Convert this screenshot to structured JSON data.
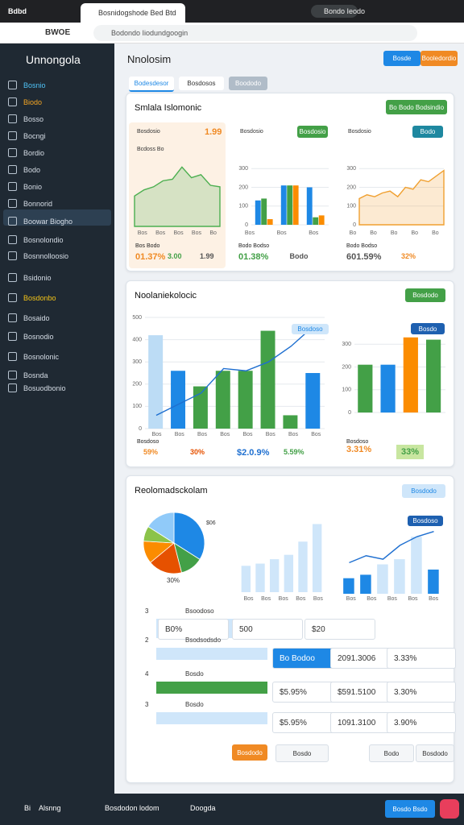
{
  "browser": {
    "tabs": [
      "Bdbd",
      "Bosnidogshode Bed Btd"
    ],
    "profile": "Bondo Ieodo",
    "nav_label": "BWOE",
    "url": "Bodondo Iiodundgoogin"
  },
  "sidebar": {
    "title": "Unnongola",
    "items": [
      "Bosnio",
      "Biodo",
      "Bosso",
      "Bocngi",
      "Bordio",
      "Bodo",
      "Bonio",
      "Bonnorid",
      "Boowar Biogho",
      "Bosnolondio",
      "Bosnnolloosio",
      "Bsidonio",
      "Bosdonbo",
      "Bosaido",
      "Bosnodio",
      "Bosnolonic",
      "Bosnda",
      "Bosuodbonio"
    ],
    "footer": "Alsnng"
  },
  "header": {
    "title": "Nnolosim",
    "buttons": [
      "Bosde",
      "Booledordio"
    ]
  },
  "tabs": [
    "Bodesdesor",
    "Bosdosos",
    "Boododo"
  ],
  "card1": {
    "title": "Smlala Islomonic",
    "button": "Bo Bodo Bodsindio",
    "panels": [
      {
        "label": "Bosdosio",
        "value": "1.99",
        "caption": "Bcdoss Bo",
        "axis_labels": [
          "Bos",
          "Bos",
          "Bos",
          "Bos",
          "Bo"
        ],
        "chart": {
          "type": "area",
          "series": [
            {
              "color": "#4caf50",
              "values": [
                2.0,
                2.4,
                2.6,
                3.0,
                3.1,
                3.9,
                3.2,
                3.4,
                2.7,
                2.6
              ]
            }
          ]
        },
        "footer": "Bos Bodo",
        "stats": [
          "01.37%",
          "3.00",
          "1.99"
        ]
      },
      {
        "label": "Bosdosio",
        "button": "Bosdosio",
        "axis_labels": [
          "Bos",
          "Bos",
          "Bos"
        ],
        "chart": {
          "type": "bar",
          "ylim": [
            0,
            400
          ],
          "yticks": [
            0,
            100,
            200,
            300
          ],
          "series": [
            {
              "color": "#1e88e5",
              "values": [
                130,
                210,
                200
              ]
            },
            {
              "color": "#43a047",
              "values": [
                140,
                210,
                40
              ]
            },
            {
              "color": "#fb8c00",
              "values": [
                30,
                210,
                50
              ]
            }
          ]
        },
        "footer": "Bodo Bodso",
        "stats": [
          "01.38%",
          "Bodo"
        ]
      },
      {
        "label": "Bosdosio",
        "button": "Bodo",
        "axis_labels": [
          "Bo",
          "Bo",
          "Bo",
          "Bo",
          "Bo"
        ],
        "chart": {
          "type": "area",
          "ylim": [
            0,
            400
          ],
          "yticks": [
            0,
            100,
            200,
            300
          ],
          "series": [
            {
              "color": "#f0a030",
              "values": [
                140,
                160,
                150,
                170,
                180,
                150,
                200,
                190,
                240,
                230,
                260,
                290
              ]
            }
          ]
        },
        "footer": "Bodo Bodso",
        "stats": [
          "601.59%",
          "32%"
        ]
      }
    ]
  },
  "card2": {
    "title": "Noolaniekolocic",
    "button": "Bosdodo",
    "badge": "Bosdoso",
    "legend": "Bosdo",
    "axis_labels": [
      "Bos",
      "Bos",
      "Bos",
      "Bos",
      "Bos",
      "Bos",
      "Bos",
      "Bos"
    ],
    "left": {
      "type": "bar",
      "ylim": [
        0,
        500
      ],
      "yticks": [
        0,
        100,
        200,
        300,
        400,
        500
      ],
      "series": [
        {
          "colors": [
            "#bcdcf5",
            "#1e88e5",
            "#43a047",
            "#43a047",
            "#43a047",
            "#43a047",
            "#43a047",
            "#1e88e5"
          ],
          "values": [
            420,
            260,
            190,
            260,
            260,
            440,
            60,
            250
          ]
        },
        {
          "kind": "line",
          "color": "#1e6fd0",
          "values": [
            60,
            110,
            160,
            270,
            260,
            300,
            370,
            460
          ]
        }
      ]
    },
    "right": {
      "type": "bar",
      "ylim": [
        0,
        400
      ],
      "yticks": [
        0,
        100,
        200,
        300
      ],
      "series": [
        {
          "colors": [
            "#43a047",
            "#1e88e5",
            "#fb8c00",
            "#43a047"
          ],
          "values": [
            210,
            210,
            330,
            320
          ]
        }
      ]
    },
    "footer": "Bosdoso",
    "stats": [
      "59%",
      "30%",
      "$2.0.9%",
      "5.59%"
    ],
    "right_footer": "Bosdoso",
    "right_stats": [
      "3.31%",
      "33%"
    ]
  },
  "card3": {
    "title": "Reolomadsckolam",
    "button": "Bosdodo",
    "pie_labels": [
      "$06",
      "30%"
    ],
    "pie": {
      "type": "pie",
      "series": [
        {
          "colors": [
            "#1e88e5",
            "#43a047",
            "#e65100",
            "#fb8c00",
            "#8bc34a",
            "#90caf9"
          ],
          "values": [
            34,
            12,
            18,
            12,
            8,
            16
          ]
        }
      ]
    },
    "mid": {
      "type": "bar",
      "series": [
        {
          "color": "#cfe6fa",
          "values": [
            120,
            130,
            150,
            170,
            230,
            310
          ]
        }
      ]
    },
    "mid_labels": [
      "Bos",
      "Bos",
      "Bos",
      "Bos",
      "Bos"
    ],
    "right": {
      "type": "bar",
      "series": [
        {
          "colors": [
            "#1e88e5",
            "#1e88e5",
            "#cfe6fa",
            "#cfe6fa",
            "#cfe6fa",
            "#1e88e5"
          ],
          "values": [
            90,
            110,
            170,
            200,
            330,
            140
          ]
        },
        {
          "kind": "line",
          "color": "#1e6fd0",
          "values": [
            180,
            220,
            200,
            280,
            330,
            360
          ]
        }
      ]
    },
    "right_badge": "Bosdoso",
    "right_labels": [
      "Bos",
      "Bos",
      "Bos",
      "Bos",
      "Bos"
    ],
    "rows": [
      {
        "num": "3",
        "name": "Bsoodoso",
        "cells": [
          "B0%",
          "500",
          "$20"
        ]
      },
      {
        "num": "2",
        "name": "Bsodsodsdo",
        "cells": [
          "Bo Bodoo",
          "2091.3006",
          "3.33%"
        ]
      },
      {
        "num": "4",
        "name": "Bosdo",
        "cells": [
          "$5.95%",
          "$591.5100",
          "3.30%"
        ]
      },
      {
        "num": "3",
        "name": "Bosdo",
        "cells": [
          "$5.95%",
          "1091.3100",
          "3.90%"
        ]
      }
    ],
    "actions": [
      "Bosdodo",
      "Bosdo",
      "Bodo",
      "Bosdodo"
    ]
  },
  "footer": {
    "user": "Bi",
    "name": "Alsnng",
    "mid": "Bosdodon lodom",
    "app": "Doogda",
    "button": "Bosdo Bsdo"
  }
}
